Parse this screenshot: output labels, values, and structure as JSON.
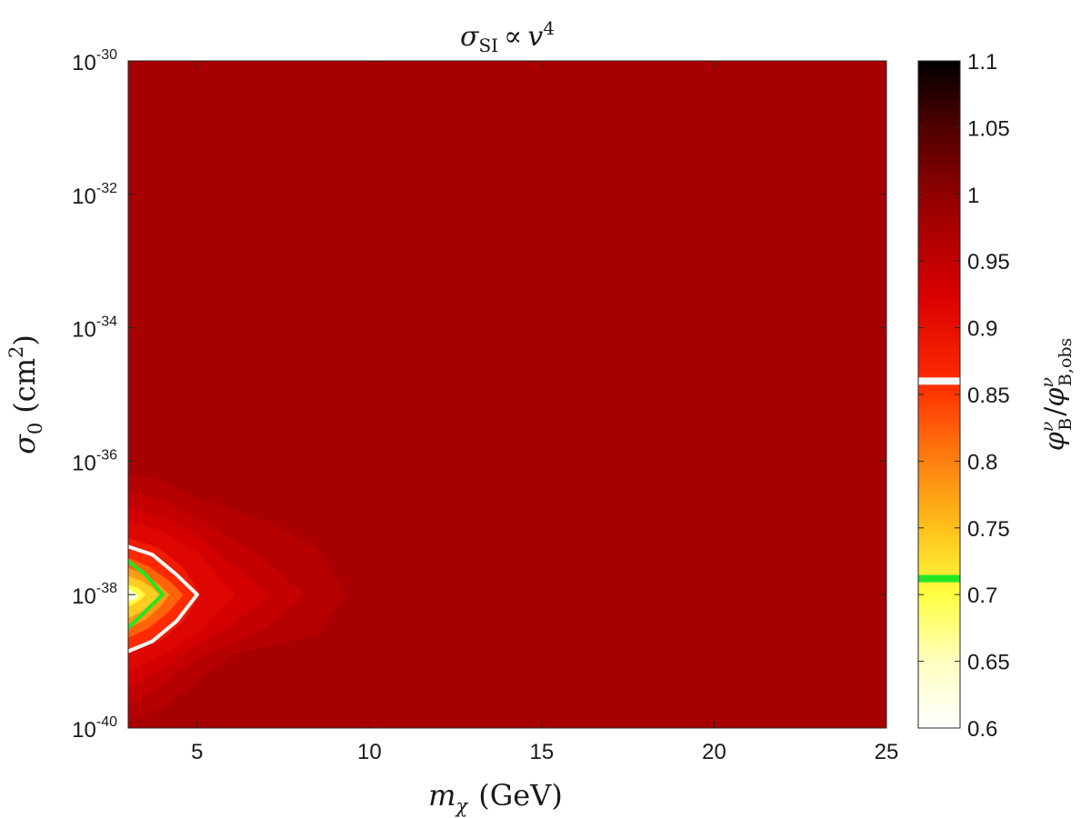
{
  "chart_data": {
    "type": "heatmap",
    "title": {
      "symbol": "σ",
      "subscript": "SI",
      "relation": "∝",
      "variable": "v",
      "exponent": "4"
    },
    "xlabel": {
      "symbol": "m",
      "subscript": "χ",
      "unit": "(GeV)"
    },
    "ylabel": {
      "symbol": "σ",
      "subscript": "0",
      "unit_open": "(cm",
      "unit_exponent": "2",
      "unit_close": ")"
    },
    "colorbar_label": {
      "num_symbol": "φ",
      "num_superscript": "ν",
      "num_subscript": "B",
      "slash": "/",
      "den_symbol": "φ",
      "den_superscript": "ν",
      "den_subscript": "B,obs"
    },
    "x_scale": "linear",
    "y_scale": "log",
    "xlim": [
      3,
      25
    ],
    "ylim": [
      1e-40,
      1e-30
    ],
    "x_ticks": [
      {
        "value": 5,
        "label": "5"
      },
      {
        "value": 10,
        "label": "10"
      },
      {
        "value": 15,
        "label": "15"
      },
      {
        "value": 20,
        "label": "20"
      },
      {
        "value": 25,
        "label": "25"
      }
    ],
    "y_ticks": [
      {
        "log10": -40,
        "base": "10",
        "exponent": "-40"
      },
      {
        "log10": -38,
        "base": "10",
        "exponent": "-38"
      },
      {
        "log10": -36,
        "base": "10",
        "exponent": "-36"
      },
      {
        "log10": -34,
        "base": "10",
        "exponent": "-34"
      },
      {
        "log10": -32,
        "base": "10",
        "exponent": "-32"
      },
      {
        "log10": -30,
        "base": "10",
        "exponent": "-30"
      }
    ],
    "colorbar": {
      "range": [
        0.6,
        1.1
      ],
      "ticks": [
        {
          "value": 0.6,
          "label": "0.6"
        },
        {
          "value": 0.65,
          "label": "0.65"
        },
        {
          "value": 0.7,
          "label": "0.7"
        },
        {
          "value": 0.75,
          "label": "0.75"
        },
        {
          "value": 0.8,
          "label": "0.8"
        },
        {
          "value": 0.85,
          "label": "0.85"
        },
        {
          "value": 0.9,
          "label": "0.9"
        },
        {
          "value": 0.95,
          "label": "0.95"
        },
        {
          "value": 1,
          "label": "1"
        },
        {
          "value": 1.05,
          "label": "1.05"
        },
        {
          "value": 1.1,
          "label": "1.1"
        }
      ],
      "markers": [
        {
          "value": 0.86,
          "color": "#f5f5f5"
        },
        {
          "value": 0.712,
          "color": "#22e622"
        }
      ]
    },
    "background_value": 0.975,
    "filled_contours": [
      {
        "level": 0.96,
        "points": [
          [
            3,
            -36.2
          ],
          [
            4,
            -36.3
          ],
          [
            5,
            -36.55
          ],
          [
            7,
            -36.9
          ],
          [
            8.5,
            -37.3
          ],
          [
            9.3,
            -38.0
          ],
          [
            8.5,
            -38.6
          ],
          [
            6,
            -38.9
          ],
          [
            5,
            -39.3
          ],
          [
            4,
            -39.7
          ],
          [
            3,
            -39.9
          ]
        ]
      },
      {
        "level": 0.945,
        "points": [
          [
            3,
            -36.45
          ],
          [
            4,
            -36.6
          ],
          [
            5.5,
            -37.0
          ],
          [
            7,
            -37.5
          ],
          [
            8.1,
            -38.0
          ],
          [
            7,
            -38.5
          ],
          [
            5,
            -38.95
          ],
          [
            4,
            -39.35
          ],
          [
            3,
            -39.65
          ]
        ]
      },
      {
        "level": 0.93,
        "points": [
          [
            3,
            -36.7
          ],
          [
            4,
            -36.85
          ],
          [
            5,
            -37.1
          ],
          [
            6,
            -37.55
          ],
          [
            7.1,
            -38.0
          ],
          [
            6,
            -38.45
          ],
          [
            5,
            -38.75
          ],
          [
            4,
            -39.1
          ],
          [
            3,
            -39.4
          ]
        ]
      },
      {
        "level": 0.915,
        "points": [
          [
            3,
            -36.9
          ],
          [
            4,
            -37.05
          ],
          [
            5,
            -37.35
          ],
          [
            6.1,
            -38.0
          ],
          [
            5,
            -38.6
          ],
          [
            4,
            -38.9
          ],
          [
            3,
            -39.15
          ]
        ]
      },
      {
        "level": 0.885,
        "points": [
          [
            3,
            -37.15
          ],
          [
            3.9,
            -37.3
          ],
          [
            4.6,
            -37.6
          ],
          [
            5.1,
            -38.0
          ],
          [
            4.6,
            -38.4
          ],
          [
            3.9,
            -38.7
          ],
          [
            3,
            -38.85
          ]
        ]
      },
      {
        "level": 0.86,
        "points": [
          [
            3,
            -37.28
          ],
          [
            3.7,
            -37.4
          ],
          [
            4.4,
            -37.7
          ],
          [
            5,
            -38.0
          ],
          [
            4.4,
            -38.4
          ],
          [
            3.7,
            -38.7
          ],
          [
            3,
            -38.85
          ]
        ]
      },
      {
        "level": 0.82,
        "points": [
          [
            3,
            -37.45
          ],
          [
            3.6,
            -37.58
          ],
          [
            4.2,
            -37.8
          ],
          [
            4.6,
            -38.0
          ],
          [
            4.2,
            -38.25
          ],
          [
            3.6,
            -38.5
          ],
          [
            3,
            -38.65
          ]
        ]
      },
      {
        "level": 0.78,
        "points": [
          [
            3,
            -37.6
          ],
          [
            3.5,
            -37.7
          ],
          [
            3.9,
            -37.85
          ],
          [
            4.2,
            -38.0
          ],
          [
            3.9,
            -38.2
          ],
          [
            3.5,
            -38.38
          ],
          [
            3,
            -38.5
          ]
        ]
      },
      {
        "level": 0.74,
        "points": [
          [
            3,
            -37.72
          ],
          [
            3.4,
            -37.8
          ],
          [
            3.7,
            -37.9
          ],
          [
            3.9,
            -38.0
          ],
          [
            3.7,
            -38.12
          ],
          [
            3.4,
            -38.25
          ],
          [
            3,
            -38.35
          ]
        ]
      },
      {
        "level": 0.7,
        "points": [
          [
            3,
            -37.85
          ],
          [
            3.3,
            -37.9
          ],
          [
            3.5,
            -38.0
          ],
          [
            3.3,
            -38.1
          ],
          [
            3,
            -38.18
          ]
        ]
      },
      {
        "level": 0.64,
        "points": [
          [
            3,
            -37.92
          ],
          [
            3.2,
            -37.97
          ],
          [
            3.3,
            -38.02
          ],
          [
            3.2,
            -38.08
          ],
          [
            3,
            -38.1
          ]
        ]
      }
    ],
    "contour_lines": [
      {
        "value": 0.86,
        "color": "#f5f5f5",
        "points": [
          [
            3,
            -37.28
          ],
          [
            3.7,
            -37.4
          ],
          [
            4.4,
            -37.7
          ],
          [
            5,
            -38.0
          ],
          [
            4.4,
            -38.4
          ],
          [
            3.7,
            -38.7
          ],
          [
            3,
            -38.85
          ]
        ]
      },
      {
        "value": 0.712,
        "color": "#22e622",
        "points": [
          [
            3,
            -37.5
          ],
          [
            3.5,
            -37.7
          ],
          [
            4,
            -38.0
          ],
          [
            3.5,
            -38.25
          ],
          [
            3,
            -38.5
          ]
        ]
      }
    ]
  }
}
